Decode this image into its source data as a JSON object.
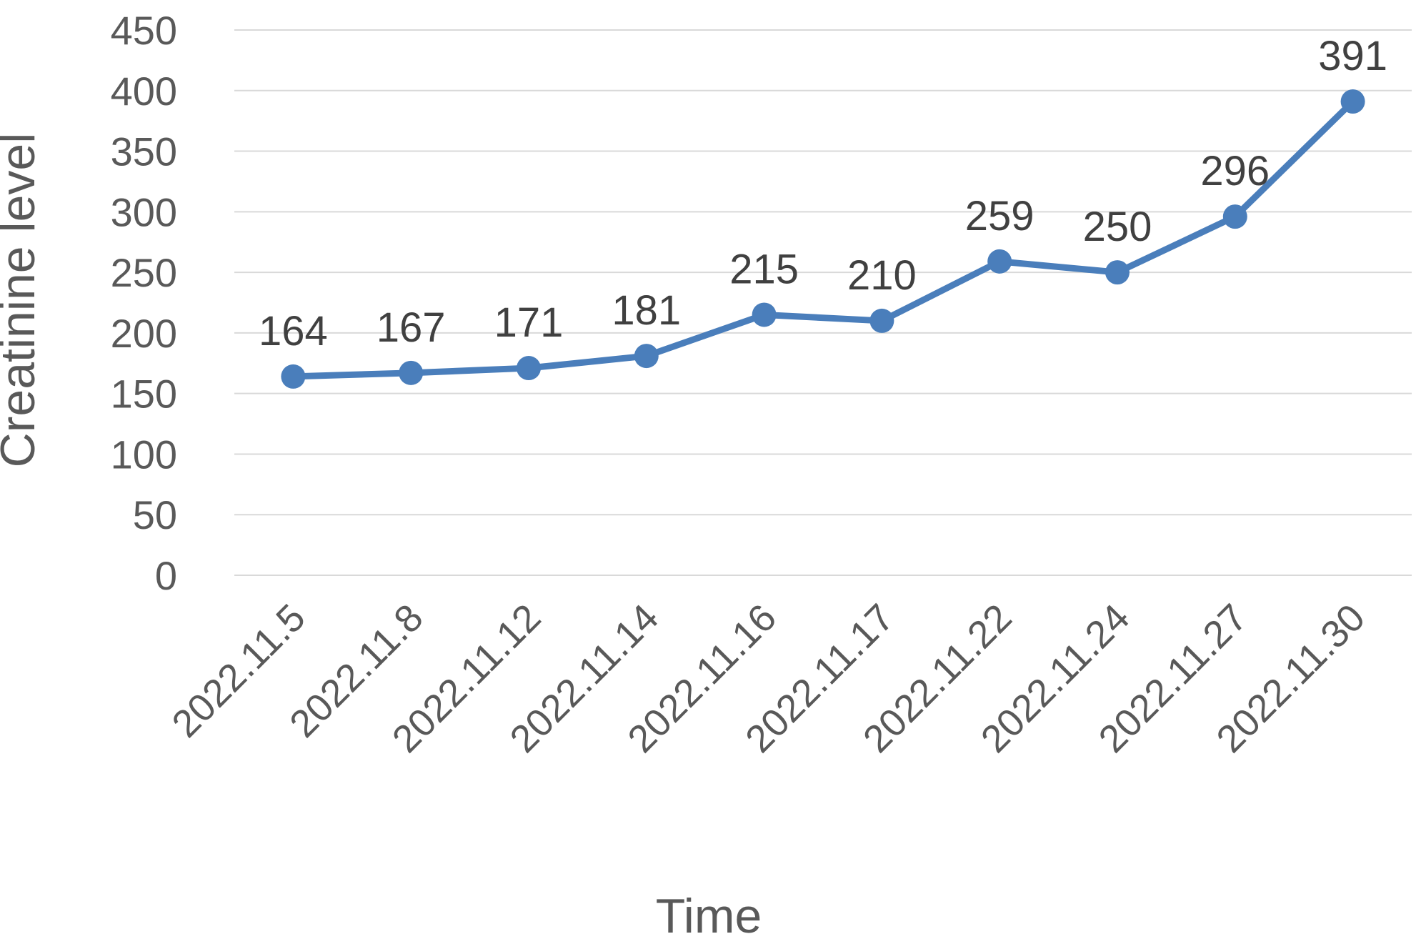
{
  "chart_data": {
    "type": "line",
    "title": "",
    "xlabel": "Time",
    "ylabel": "Creatinine level",
    "categories": [
      "2022.11.5",
      "2022.11.8",
      "2022.11.12",
      "2022.11.14",
      "2022.11.16",
      "2022.11.17",
      "2022.11.22",
      "2022.11.24",
      "2022.11.27",
      "2022.11.30"
    ],
    "series": [
      {
        "values": [
          164,
          167,
          171,
          181,
          215,
          210,
          259,
          250,
          296,
          391
        ],
        "color": "#4a7ebb",
        "data_labels": true
      }
    ],
    "ylim": [
      0,
      450
    ],
    "yticks": [
      0,
      50,
      100,
      150,
      200,
      250,
      300,
      350,
      400,
      450
    ],
    "grid": "horizontal",
    "legend": "none"
  }
}
